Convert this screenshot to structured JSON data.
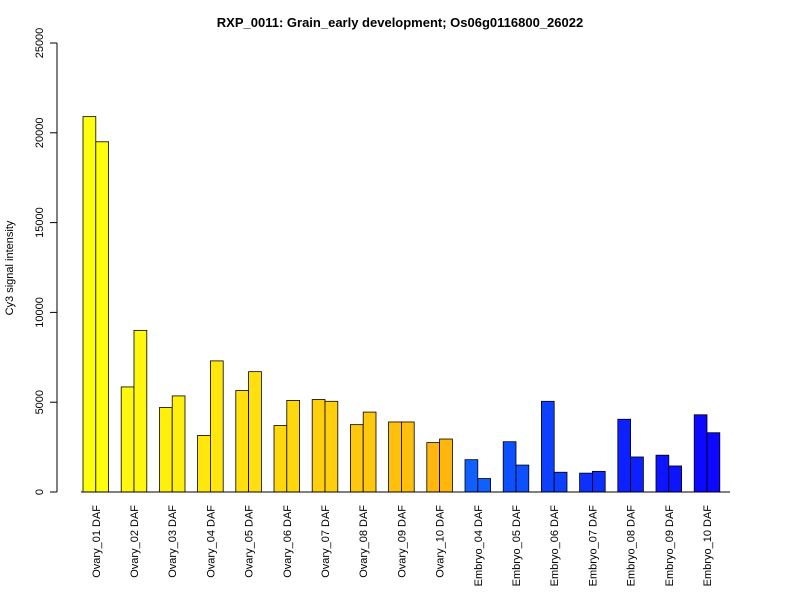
{
  "chart_data": {
    "type": "bar",
    "title": "RXP_0011: Grain_early development; Os06g0116800_26022",
    "xlabel": "",
    "ylabel": "Cy3 signal intensity",
    "ylim": [
      0,
      25000
    ],
    "yticks": [
      0,
      5000,
      10000,
      15000,
      20000,
      25000
    ],
    "grid": false,
    "legend": "none",
    "categories": [
      "Ovary_01 DAF",
      "Ovary_02 DAF",
      "Ovary_03 DAF",
      "Ovary_04 DAF",
      "Ovary_05 DAF",
      "Ovary_06 DAF",
      "Ovary_07 DAF",
      "Ovary_08 DAF",
      "Ovary_09 DAF",
      "Ovary_10 DAF",
      "Embryo_04 DAF",
      "Embryo_05 DAF",
      "Embryo_06 DAF",
      "Embryo_07 DAF",
      "Embryo_08 DAF",
      "Embryo_09 DAF",
      "Embryo_10 DAF"
    ],
    "series": [
      {
        "values": [
          20900,
          5850,
          4700,
          3150,
          5650,
          3700,
          5150,
          3750,
          3900,
          2750,
          1800,
          2800,
          5050,
          1050,
          4050,
          2050,
          4300
        ]
      },
      {
        "values": [
          19500,
          9000,
          5350,
          7300,
          6700,
          5100,
          5050,
          4450,
          3900,
          2950,
          750,
          1500,
          1100,
          1150,
          1950,
          1450,
          3300
        ]
      }
    ],
    "bar_colors": [
      "#FFFF0D",
      "#FFF70D",
      "#FFEF0D",
      "#FFE70D",
      "#FFDF0D",
      "#FFD70D",
      "#FFCF0D",
      "#FFC70D",
      "#FFBF0D",
      "#FFB70D",
      "#1060FF",
      "#0D50FF",
      "#0D40FF",
      "#0D30FF",
      "#0D20FF",
      "#0D14FF",
      "#0D08FF"
    ]
  }
}
